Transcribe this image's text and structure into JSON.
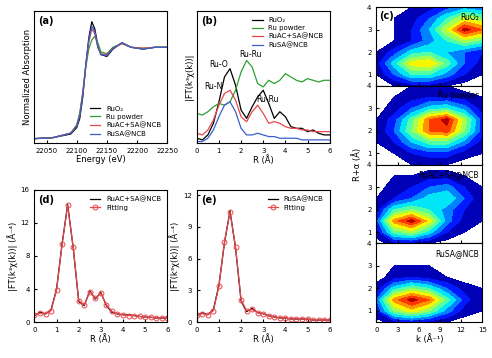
{
  "chart_data": [
    {
      "type": "line",
      "panel": "(a)",
      "x_label": "Energy (eV)",
      "y_label": "Normalized Absorption",
      "x": [
        22030,
        22060,
        22090,
        22100,
        22105,
        22110,
        22115,
        22120,
        22125,
        22130,
        22135,
        22140,
        22150,
        22160,
        22175,
        22190,
        22210,
        22230,
        22250
      ],
      "xlim": [
        22030,
        22250
      ],
      "xticks": [
        22050,
        22100,
        22150,
        22200,
        22250
      ],
      "ylim": [
        -0.05,
        1.4
      ],
      "yticks": [],
      "tick_labels": "x",
      "legend": "lower right",
      "series": [
        {
          "name": "RuO₂",
          "color": "#000000",
          "values": [
            0,
            0.01,
            0.05,
            0.12,
            0.22,
            0.45,
            0.8,
            1.1,
            1.28,
            1.2,
            1.02,
            0.92,
            0.9,
            0.98,
            1.05,
            1.0,
            0.98,
            1.0,
            1.0
          ]
        },
        {
          "name": "Ru powder",
          "color": "#2ca02c",
          "values": [
            0,
            0.01,
            0.06,
            0.15,
            0.28,
            0.5,
            0.78,
            0.98,
            1.08,
            1.12,
            1.05,
            0.95,
            0.93,
            1.0,
            1.04,
            1.0,
            0.99,
            1.0,
            1.0
          ]
        },
        {
          "name": "RuAC+SA@NCB",
          "color": "#e8474b",
          "values": [
            0,
            0.01,
            0.06,
            0.14,
            0.26,
            0.5,
            0.8,
            1.05,
            1.2,
            1.15,
            1.0,
            0.93,
            0.92,
            0.99,
            1.04,
            1.0,
            0.99,
            1.0,
            1.0
          ]
        },
        {
          "name": "RuSA@NCB",
          "color": "#3a5fcd",
          "values": [
            0,
            0.01,
            0.06,
            0.14,
            0.25,
            0.48,
            0.8,
            1.08,
            1.23,
            1.17,
            1.0,
            0.92,
            0.91,
            0.99,
            1.05,
            1.0,
            0.98,
            1.0,
            1.0
          ]
        }
      ]
    },
    {
      "type": "line",
      "panel": "(b)",
      "x_label": "R (Å)",
      "y_label": "|FT(k³χ(k))|",
      "x": [
        0,
        0.25,
        0.5,
        0.75,
        1.0,
        1.25,
        1.5,
        1.75,
        2.0,
        2.25,
        2.5,
        2.75,
        3.0,
        3.25,
        3.5,
        3.75,
        4.0,
        4.25,
        4.5,
        4.75,
        5.0,
        5.25,
        5.5,
        5.75,
        6.0
      ],
      "xlim": [
        0,
        6
      ],
      "xticks": [
        0,
        1,
        2,
        3,
        4,
        5,
        6
      ],
      "ylim": [
        0,
        8
      ],
      "yticks": [],
      "tick_labels": "x",
      "legend": "upper right",
      "annotations": [
        {
          "text": "Ru-Ru",
          "x": 1.9,
          "y": 5.2
        },
        {
          "text": "Ru-O",
          "x": 0.55,
          "y": 4.6
        },
        {
          "text": "Ru-N",
          "x": 0.35,
          "y": 3.3
        },
        {
          "text": "Ru-Ru",
          "x": 2.7,
          "y": 2.5
        }
      ],
      "series": [
        {
          "name": "RuO₂",
          "color": "#000000",
          "values": [
            0.3,
            0.2,
            0.5,
            1.2,
            2.5,
            4.0,
            4.5,
            3.5,
            2.0,
            1.5,
            2.2,
            2.8,
            3.2,
            2.4,
            1.5,
            1.9,
            1.6,
            1.0,
            0.9,
            0.9,
            0.7,
            0.8,
            0.6,
            0.5,
            0.5
          ]
        },
        {
          "name": "Ru powder",
          "color": "#2ca02c",
          "values": [
            1.8,
            1.7,
            1.9,
            2.2,
            2.4,
            2.3,
            2.5,
            3.2,
            4.3,
            5.0,
            4.6,
            3.6,
            3.4,
            3.8,
            3.6,
            3.8,
            4.2,
            4.0,
            3.8,
            3.7,
            3.9,
            3.8,
            3.7,
            3.8,
            3.8
          ]
        },
        {
          "name": "RuAC+SA@NCB",
          "color": "#e8474b",
          "values": [
            0.6,
            0.5,
            0.8,
            1.4,
            2.3,
            3.0,
            3.2,
            2.6,
            1.6,
            1.3,
            1.9,
            2.3,
            1.8,
            1.2,
            1.3,
            1.2,
            1.0,
            0.9,
            0.9,
            0.8,
            0.8,
            0.7,
            0.7,
            0.7,
            0.7
          ]
        },
        {
          "name": "RuSA@NCB",
          "color": "#3a5fcd",
          "values": [
            0.1,
            0.1,
            0.3,
            0.8,
            1.6,
            2.3,
            2.5,
            1.9,
            0.9,
            0.5,
            0.5,
            0.6,
            0.5,
            0.4,
            0.4,
            0.3,
            0.3,
            0.3,
            0.3,
            0.2,
            0.2,
            0.2,
            0.2,
            0.2,
            0.2
          ]
        }
      ]
    },
    {
      "type": "contour",
      "panel": "(c)",
      "x_label": "k (Å⁻¹)",
      "y_label": "R+α (Å)",
      "x": [
        0,
        2.5,
        5,
        7.5,
        10,
        12.5,
        15
      ],
      "y": [
        0,
        0.5,
        1.0,
        1.5,
        2.0,
        2.5,
        3.0,
        3.5,
        4.0
      ],
      "xlim": [
        0,
        15
      ],
      "xticks": [
        0,
        3,
        6,
        9,
        12,
        15
      ],
      "ylim": [
        0.5,
        4
      ],
      "yticks": [
        1,
        2,
        3,
        4
      ],
      "panels": [
        {
          "name": "RuO₂",
          "z": [
            [
              0,
              0,
              0,
              0,
              0,
              0,
              0
            ],
            [
              0,
              0.05,
              0.1,
              0.1,
              0.05,
              0,
              0
            ],
            [
              0.05,
              0.25,
              0.45,
              0.45,
              0.3,
              0.15,
              0.05
            ],
            [
              0.1,
              0.4,
              0.7,
              0.75,
              0.5,
              0.25,
              0.1
            ],
            [
              0.05,
              0.2,
              0.4,
              0.45,
              0.35,
              0.25,
              0.15
            ],
            [
              0,
              0.05,
              0.15,
              0.3,
              0.45,
              0.6,
              0.5
            ],
            [
              0,
              0.05,
              0.15,
              0.35,
              0.65,
              1.0,
              0.85
            ],
            [
              0,
              0.05,
              0.1,
              0.25,
              0.45,
              0.65,
              0.55
            ],
            [
              0,
              0,
              0.05,
              0.1,
              0.2,
              0.3,
              0.25
            ]
          ]
        },
        {
          "name": "Ru powder",
          "z": [
            [
              0,
              0,
              0,
              0,
              0,
              0,
              0
            ],
            [
              0,
              0,
              0.05,
              0.05,
              0.05,
              0,
              0
            ],
            [
              0,
              0.05,
              0.15,
              0.2,
              0.2,
              0.1,
              0.05
            ],
            [
              0.05,
              0.15,
              0.35,
              0.5,
              0.5,
              0.3,
              0.1
            ],
            [
              0.05,
              0.25,
              0.55,
              0.85,
              0.9,
              0.55,
              0.2
            ],
            [
              0.05,
              0.2,
              0.5,
              0.85,
              1.0,
              0.6,
              0.2
            ],
            [
              0,
              0.1,
              0.25,
              0.4,
              0.45,
              0.3,
              0.1
            ],
            [
              0,
              0.05,
              0.1,
              0.15,
              0.15,
              0.1,
              0.05
            ],
            [
              0,
              0,
              0.05,
              0.05,
              0.05,
              0,
              0
            ]
          ]
        },
        {
          "name": "RuAC+SA@NCB",
          "z": [
            [
              0,
              0,
              0,
              0,
              0,
              0,
              0
            ],
            [
              0,
              0.1,
              0.1,
              0.05,
              0,
              0,
              0
            ],
            [
              0.1,
              0.5,
              0.6,
              0.4,
              0.15,
              0.05,
              0
            ],
            [
              0.2,
              0.8,
              1.0,
              0.7,
              0.3,
              0.1,
              0.05
            ],
            [
              0.1,
              0.45,
              0.55,
              0.45,
              0.3,
              0.15,
              0.05
            ],
            [
              0.05,
              0.15,
              0.25,
              0.4,
              0.45,
              0.25,
              0.05
            ],
            [
              0,
              0.1,
              0.15,
              0.25,
              0.3,
              0.15,
              0.05
            ],
            [
              0,
              0.05,
              0.05,
              0.1,
              0.1,
              0.05,
              0
            ],
            [
              0,
              0,
              0,
              0,
              0,
              0,
              0
            ]
          ]
        },
        {
          "name": "RuSA@NCB",
          "z": [
            [
              0,
              0,
              0,
              0,
              0,
              0,
              0
            ],
            [
              0,
              0.1,
              0.15,
              0.1,
              0.05,
              0,
              0
            ],
            [
              0.15,
              0.55,
              0.7,
              0.55,
              0.3,
              0.1,
              0.05
            ],
            [
              0.25,
              0.8,
              1.0,
              0.85,
              0.5,
              0.2,
              0.05
            ],
            [
              0.1,
              0.4,
              0.55,
              0.45,
              0.25,
              0.1,
              0.05
            ],
            [
              0,
              0.1,
              0.15,
              0.1,
              0.05,
              0,
              0
            ],
            [
              0,
              0.05,
              0.05,
              0.05,
              0,
              0,
              0
            ],
            [
              0,
              0,
              0,
              0,
              0,
              0,
              0
            ],
            [
              0,
              0,
              0,
              0,
              0,
              0,
              0
            ]
          ]
        }
      ]
    },
    {
      "type": "line",
      "panel": "(d)",
      "x_label": "R (Å)",
      "y_label": "|FT(k³χ(k))| (Å⁻⁴)",
      "x": [
        0,
        0.25,
        0.5,
        0.75,
        1.0,
        1.25,
        1.5,
        1.75,
        2.0,
        2.25,
        2.5,
        2.75,
        3.0,
        3.25,
        3.5,
        3.75,
        4.0,
        4.25,
        4.5,
        4.75,
        5.0,
        5.25,
        5.5,
        5.75,
        6.0
      ],
      "xlim": [
        0,
        6
      ],
      "xticks": [
        0,
        1,
        2,
        3,
        4,
        5,
        6
      ],
      "ylim": [
        0,
        16
      ],
      "yticks": [
        0,
        4,
        8,
        12,
        16
      ],
      "legend": "upper right",
      "series": [
        {
          "name": "RuAC+SA@NCB",
          "color": "#000000",
          "line_style": "solid",
          "values": [
            0.8,
            1.2,
            1.0,
            1.5,
            4.0,
            9.5,
            14.2,
            9.0,
            2.5,
            2.0,
            3.8,
            2.8,
            3.6,
            2.0,
            1.2,
            1.0,
            0.9,
            0.9,
            0.8,
            0.7,
            0.6,
            0.6,
            0.5,
            0.5,
            0.5
          ]
        },
        {
          "name": "Fitting",
          "color": "#e8474b",
          "line_style": "solid",
          "marker": "circle",
          "values": [
            0.9,
            1.1,
            1.0,
            1.4,
            3.9,
            9.4,
            14.1,
            9.1,
            2.6,
            2.1,
            3.7,
            2.9,
            3.5,
            2.1,
            1.3,
            1.0,
            0.9,
            0.8,
            0.8,
            0.7,
            0.6,
            0.6,
            0.5,
            0.5,
            0.5
          ]
        }
      ]
    },
    {
      "type": "line",
      "panel": "(e)",
      "x_label": "R (Å)",
      "y_label": "|FT(k³χ(k))| (Å⁻⁴)",
      "x": [
        0,
        0.25,
        0.5,
        0.75,
        1.0,
        1.25,
        1.5,
        1.75,
        2.0,
        2.25,
        2.5,
        2.75,
        3.0,
        3.25,
        3.5,
        3.75,
        4.0,
        4.25,
        4.5,
        4.75,
        5.0,
        5.25,
        5.5,
        5.75,
        6.0
      ],
      "xlim": [
        0,
        6
      ],
      "xticks": [
        0,
        1,
        2,
        3,
        4,
        5,
        6
      ],
      "ylim": [
        0,
        12.5
      ],
      "yticks": [
        0,
        3,
        6,
        9,
        12
      ],
      "legend": "upper right",
      "series": [
        {
          "name": "RuSA@NCB",
          "color": "#000000",
          "line_style": "solid",
          "values": [
            0.6,
            0.9,
            0.7,
            1.2,
            3.5,
            7.5,
            10.5,
            7.0,
            2.0,
            1.0,
            1.3,
            0.9,
            0.8,
            0.6,
            0.5,
            0.4,
            0.4,
            0.3,
            0.3,
            0.3,
            0.3,
            0.2,
            0.2,
            0.2,
            0.2
          ]
        },
        {
          "name": "Fitting",
          "color": "#e8474b",
          "line_style": "solid",
          "marker": "circle",
          "values": [
            0.7,
            0.8,
            0.7,
            1.1,
            3.4,
            7.6,
            10.4,
            7.1,
            2.1,
            1.1,
            1.2,
            0.9,
            0.8,
            0.6,
            0.5,
            0.4,
            0.4,
            0.3,
            0.3,
            0.3,
            0.3,
            0.2,
            0.2,
            0.2,
            0.2
          ]
        }
      ]
    }
  ]
}
